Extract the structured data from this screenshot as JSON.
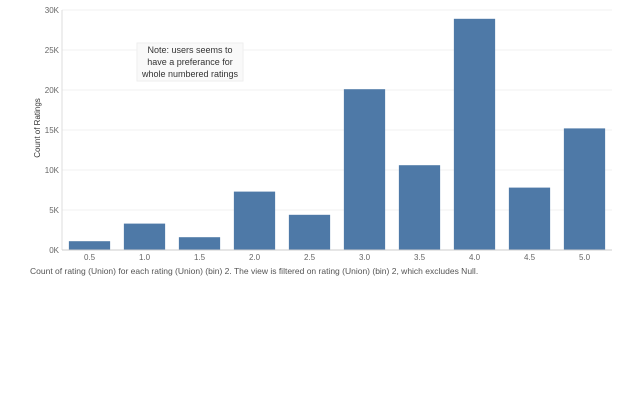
{
  "chart_data": {
    "type": "bar",
    "categories": [
      "0.5",
      "1.0",
      "1.5",
      "2.0",
      "2.5",
      "3.0",
      "3.5",
      "4.0",
      "4.5",
      "5.0"
    ],
    "values": [
      1100,
      3300,
      1600,
      7300,
      4400,
      20100,
      10600,
      28900,
      7800,
      15200
    ],
    "ylabel": "Count of Ratings",
    "xlabel": "",
    "ylim": [
      0,
      30000
    ],
    "yticks": [
      0,
      5000,
      10000,
      15000,
      20000,
      25000,
      30000
    ],
    "ytick_labels": [
      "0K",
      "5K",
      "10K",
      "15K",
      "20K",
      "25K",
      "30K"
    ],
    "grid": true,
    "bar_color": "#4e79a7",
    "annotation": [
      "Note: users seems to",
      "have a preferance for",
      "whole numbered ratings"
    ]
  },
  "caption": "Count of rating (Union) for each rating (Union) (bin) 2. The view is filtered on rating (Union) (bin) 2, which excludes Null."
}
